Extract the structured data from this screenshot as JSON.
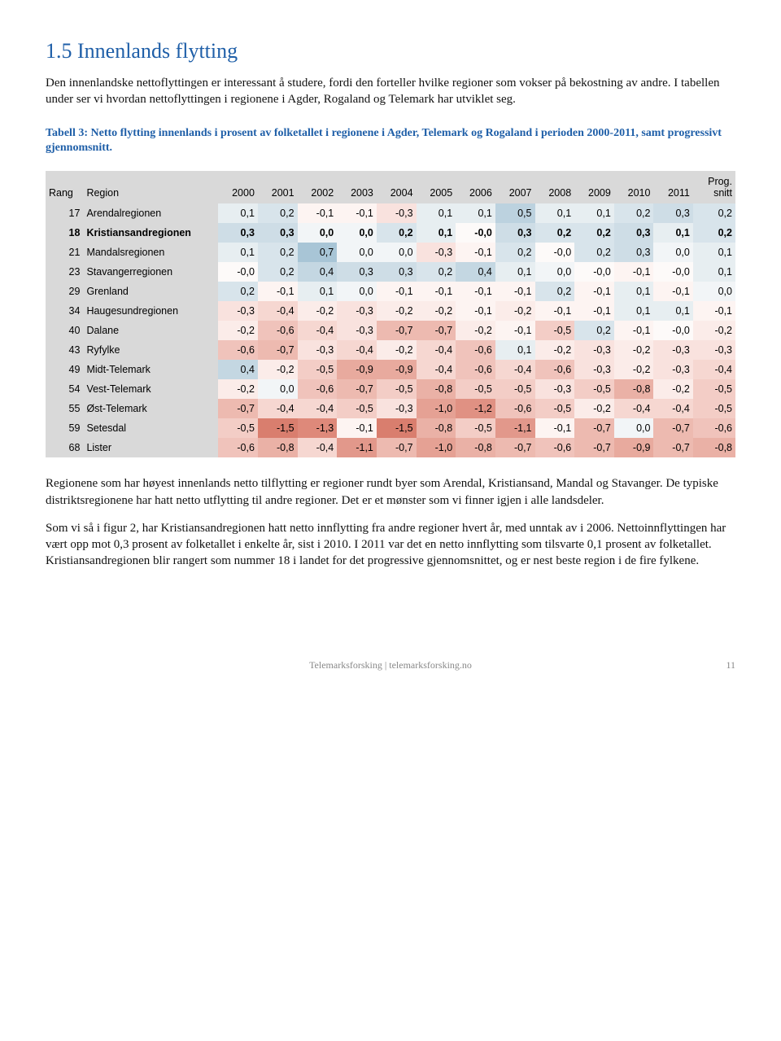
{
  "section_title": "1.5 Innenlands flytting",
  "intro_p1": "Den innenlandske nettoflyttingen er interessant å studere, fordi den forteller hvilke regioner som vokser på bekostning av andre. I tabellen under ser vi hvordan nettoflyttingen i regionene i Agder, Rogaland og Telemark har utviklet seg.",
  "caption": "Tabell 3: Netto flytting innenlands i prosent av folketallet i regionene i Agder, Telemark og Rogaland i perioden 2000-2011, samt progressivt gjennomsnitt.",
  "table": {
    "columns": [
      "Rang",
      "Region",
      "2000",
      "2001",
      "2002",
      "2003",
      "2004",
      "2005",
      "2006",
      "2007",
      "2008",
      "2009",
      "2010",
      "2011",
      "Prog. snitt"
    ],
    "col_widths": [
      "42px",
      "170px",
      "46px",
      "46px",
      "46px",
      "46px",
      "46px",
      "46px",
      "46px",
      "46px",
      "46px",
      "46px",
      "46px",
      "46px",
      "50px"
    ],
    "header_bg": "#d9d9d9",
    "rows": [
      {
        "rang": "17",
        "region": "Arendalregionen",
        "bold": false,
        "cells": [
          {
            "v": "0,1",
            "bg": "#e7eef1"
          },
          {
            "v": "0,2",
            "bg": "#d8e4eb"
          },
          {
            "v": "-0,1",
            "bg": "#fdf4f2"
          },
          {
            "v": "-0,1",
            "bg": "#fdf4f2"
          },
          {
            "v": "-0,3",
            "bg": "#f9e2de"
          },
          {
            "v": "0,1",
            "bg": "#e7eef1"
          },
          {
            "v": "0,1",
            "bg": "#e7eef1"
          },
          {
            "v": "0,5",
            "bg": "#bcd2df"
          },
          {
            "v": "0,1",
            "bg": "#e7eef1"
          },
          {
            "v": "0,1",
            "bg": "#e7eef1"
          },
          {
            "v": "0,2",
            "bg": "#d8e4eb"
          },
          {
            "v": "0,3",
            "bg": "#cedde6"
          },
          {
            "v": "0,2",
            "bg": "#d8e4eb"
          }
        ]
      },
      {
        "rang": "18",
        "region": "Kristiansandregionen",
        "bold": true,
        "cells": [
          {
            "v": "0,3",
            "bg": "#cedde6"
          },
          {
            "v": "0,3",
            "bg": "#cedde6"
          },
          {
            "v": "0,0",
            "bg": "#f2f5f7"
          },
          {
            "v": "0,0",
            "bg": "#f2f5f7"
          },
          {
            "v": "0,2",
            "bg": "#d8e4eb"
          },
          {
            "v": "0,1",
            "bg": "#e7eef1"
          },
          {
            "v": "-0,0",
            "bg": "#fdfaf9"
          },
          {
            "v": "0,3",
            "bg": "#cedde6"
          },
          {
            "v": "0,2",
            "bg": "#d8e4eb"
          },
          {
            "v": "0,2",
            "bg": "#d8e4eb"
          },
          {
            "v": "0,3",
            "bg": "#cedde6"
          },
          {
            "v": "0,1",
            "bg": "#e7eef1"
          },
          {
            "v": "0,2",
            "bg": "#d8e4eb"
          }
        ]
      },
      {
        "rang": "21",
        "region": "Mandalsregionen",
        "bold": false,
        "cells": [
          {
            "v": "0,1",
            "bg": "#e7eef1"
          },
          {
            "v": "0,2",
            "bg": "#d8e4eb"
          },
          {
            "v": "0,7",
            "bg": "#a8c5d6"
          },
          {
            "v": "0,0",
            "bg": "#f2f5f7"
          },
          {
            "v": "0,0",
            "bg": "#f2f5f7"
          },
          {
            "v": "-0,3",
            "bg": "#f9e2de"
          },
          {
            "v": "-0,1",
            "bg": "#fdf4f2"
          },
          {
            "v": "0,2",
            "bg": "#d8e4eb"
          },
          {
            "v": "-0,0",
            "bg": "#fdfaf9"
          },
          {
            "v": "0,2",
            "bg": "#d8e4eb"
          },
          {
            "v": "0,3",
            "bg": "#cedde6"
          },
          {
            "v": "0,0",
            "bg": "#f2f5f7"
          },
          {
            "v": "0,1",
            "bg": "#e7eef1"
          }
        ]
      },
      {
        "rang": "23",
        "region": "Stavangerregionen",
        "bold": false,
        "cells": [
          {
            "v": "-0,0",
            "bg": "#fdfaf9"
          },
          {
            "v": "0,2",
            "bg": "#d8e4eb"
          },
          {
            "v": "0,4",
            "bg": "#c4d7e2"
          },
          {
            "v": "0,3",
            "bg": "#cedde6"
          },
          {
            "v": "0,3",
            "bg": "#cedde6"
          },
          {
            "v": "0,2",
            "bg": "#d8e4eb"
          },
          {
            "v": "0,4",
            "bg": "#c4d7e2"
          },
          {
            "v": "0,1",
            "bg": "#e7eef1"
          },
          {
            "v": "0,0",
            "bg": "#f2f5f7"
          },
          {
            "v": "-0,0",
            "bg": "#fdfaf9"
          },
          {
            "v": "-0,1",
            "bg": "#fdf4f2"
          },
          {
            "v": "-0,0",
            "bg": "#fdfaf9"
          },
          {
            "v": "0,1",
            "bg": "#e7eef1"
          }
        ]
      },
      {
        "rang": "29",
        "region": "Grenland",
        "bold": false,
        "cells": [
          {
            "v": "0,2",
            "bg": "#d8e4eb"
          },
          {
            "v": "-0,1",
            "bg": "#fdf4f2"
          },
          {
            "v": "0,1",
            "bg": "#e7eef1"
          },
          {
            "v": "0,0",
            "bg": "#f2f5f7"
          },
          {
            "v": "-0,1",
            "bg": "#fdf4f2"
          },
          {
            "v": "-0,1",
            "bg": "#fdf4f2"
          },
          {
            "v": "-0,1",
            "bg": "#fdf4f2"
          },
          {
            "v": "-0,1",
            "bg": "#fdf4f2"
          },
          {
            "v": "0,2",
            "bg": "#d8e4eb"
          },
          {
            "v": "-0,1",
            "bg": "#fdf4f2"
          },
          {
            "v": "0,1",
            "bg": "#e7eef1"
          },
          {
            "v": "-0,1",
            "bg": "#fdf4f2"
          },
          {
            "v": "0,0",
            "bg": "#f2f5f7"
          }
        ]
      },
      {
        "rang": "34",
        "region": "Haugesundregionen",
        "bold": false,
        "cells": [
          {
            "v": "-0,3",
            "bg": "#f9e2de"
          },
          {
            "v": "-0,4",
            "bg": "#f6d7d1"
          },
          {
            "v": "-0,2",
            "bg": "#fbece9"
          },
          {
            "v": "-0,3",
            "bg": "#f9e2de"
          },
          {
            "v": "-0,2",
            "bg": "#fbece9"
          },
          {
            "v": "-0,2",
            "bg": "#fbece9"
          },
          {
            "v": "-0,1",
            "bg": "#fdf4f2"
          },
          {
            "v": "-0,2",
            "bg": "#fbece9"
          },
          {
            "v": "-0,1",
            "bg": "#fdf4f2"
          },
          {
            "v": "-0,1",
            "bg": "#fdf4f2"
          },
          {
            "v": "0,1",
            "bg": "#e7eef1"
          },
          {
            "v": "0,1",
            "bg": "#e7eef1"
          },
          {
            "v": "-0,1",
            "bg": "#fdf4f2"
          }
        ]
      },
      {
        "rang": "40",
        "region": "Dalane",
        "bold": false,
        "cells": [
          {
            "v": "-0,2",
            "bg": "#fbece9"
          },
          {
            "v": "-0,6",
            "bg": "#f0c3bb"
          },
          {
            "v": "-0,4",
            "bg": "#f6d7d1"
          },
          {
            "v": "-0,3",
            "bg": "#f9e2de"
          },
          {
            "v": "-0,7",
            "bg": "#edbab0"
          },
          {
            "v": "-0,7",
            "bg": "#edbab0"
          },
          {
            "v": "-0,2",
            "bg": "#fbece9"
          },
          {
            "v": "-0,1",
            "bg": "#fdf4f2"
          },
          {
            "v": "-0,5",
            "bg": "#f3cdc6"
          },
          {
            "v": "0,2",
            "bg": "#d8e4eb"
          },
          {
            "v": "-0,1",
            "bg": "#fdf4f2"
          },
          {
            "v": "-0,0",
            "bg": "#fdfaf9"
          },
          {
            "v": "-0,2",
            "bg": "#fbece9"
          }
        ]
      },
      {
        "rang": "43",
        "region": "Ryfylke",
        "bold": false,
        "cells": [
          {
            "v": "-0,6",
            "bg": "#f0c3bb"
          },
          {
            "v": "-0,7",
            "bg": "#edbab0"
          },
          {
            "v": "-0,3",
            "bg": "#f9e2de"
          },
          {
            "v": "-0,4",
            "bg": "#f6d7d1"
          },
          {
            "v": "-0,2",
            "bg": "#fbece9"
          },
          {
            "v": "-0,4",
            "bg": "#f6d7d1"
          },
          {
            "v": "-0,6",
            "bg": "#f0c3bb"
          },
          {
            "v": "0,1",
            "bg": "#e7eef1"
          },
          {
            "v": "-0,2",
            "bg": "#fbece9"
          },
          {
            "v": "-0,3",
            "bg": "#f9e2de"
          },
          {
            "v": "-0,2",
            "bg": "#fbece9"
          },
          {
            "v": "-0,3",
            "bg": "#f9e2de"
          },
          {
            "v": "-0,3",
            "bg": "#f9e2de"
          }
        ]
      },
      {
        "rang": "49",
        "region": "Midt-Telemark",
        "bold": false,
        "cells": [
          {
            "v": "0,4",
            "bg": "#c4d7e2"
          },
          {
            "v": "-0,2",
            "bg": "#fbece9"
          },
          {
            "v": "-0,5",
            "bg": "#f3cdc6"
          },
          {
            "v": "-0,9",
            "bg": "#e8aa9e"
          },
          {
            "v": "-0,9",
            "bg": "#e8aa9e"
          },
          {
            "v": "-0,4",
            "bg": "#f6d7d1"
          },
          {
            "v": "-0,6",
            "bg": "#f0c3bb"
          },
          {
            "v": "-0,4",
            "bg": "#f6d7d1"
          },
          {
            "v": "-0,6",
            "bg": "#f0c3bb"
          },
          {
            "v": "-0,3",
            "bg": "#f9e2de"
          },
          {
            "v": "-0,2",
            "bg": "#fbece9"
          },
          {
            "v": "-0,3",
            "bg": "#f9e2de"
          },
          {
            "v": "-0,4",
            "bg": "#f6d7d1"
          }
        ]
      },
      {
        "rang": "54",
        "region": "Vest-Telemark",
        "bold": false,
        "cells": [
          {
            "v": "-0,2",
            "bg": "#fbece9"
          },
          {
            "v": "0,0",
            "bg": "#f2f5f7"
          },
          {
            "v": "-0,6",
            "bg": "#f0c3bb"
          },
          {
            "v": "-0,7",
            "bg": "#edbab0"
          },
          {
            "v": "-0,5",
            "bg": "#f3cdc6"
          },
          {
            "v": "-0,8",
            "bg": "#eab1a6"
          },
          {
            "v": "-0,5",
            "bg": "#f3cdc6"
          },
          {
            "v": "-0,5",
            "bg": "#f3cdc6"
          },
          {
            "v": "-0,3",
            "bg": "#f9e2de"
          },
          {
            "v": "-0,5",
            "bg": "#f3cdc6"
          },
          {
            "v": "-0,8",
            "bg": "#eab1a6"
          },
          {
            "v": "-0,2",
            "bg": "#fbece9"
          },
          {
            "v": "-0,5",
            "bg": "#f3cdc6"
          }
        ]
      },
      {
        "rang": "55",
        "region": "Øst-Telemark",
        "bold": false,
        "cells": [
          {
            "v": "-0,7",
            "bg": "#edbab0"
          },
          {
            "v": "-0,4",
            "bg": "#f6d7d1"
          },
          {
            "v": "-0,4",
            "bg": "#f6d7d1"
          },
          {
            "v": "-0,5",
            "bg": "#f3cdc6"
          },
          {
            "v": "-0,3",
            "bg": "#f9e2de"
          },
          {
            "v": "-1,0",
            "bg": "#e5a194"
          },
          {
            "v": "-1,2",
            "bg": "#e09183"
          },
          {
            "v": "-0,6",
            "bg": "#f0c3bb"
          },
          {
            "v": "-0,5",
            "bg": "#f3cdc6"
          },
          {
            "v": "-0,2",
            "bg": "#fbece9"
          },
          {
            "v": "-0,4",
            "bg": "#f6d7d1"
          },
          {
            "v": "-0,4",
            "bg": "#f6d7d1"
          },
          {
            "v": "-0,5",
            "bg": "#f3cdc6"
          }
        ]
      },
      {
        "rang": "59",
        "region": "Setesdal",
        "bold": false,
        "cells": [
          {
            "v": "-0,5",
            "bg": "#f3cdc6"
          },
          {
            "v": "-1,5",
            "bg": "#d97e6e"
          },
          {
            "v": "-1,3",
            "bg": "#de897a"
          },
          {
            "v": "-0,1",
            "bg": "#fdf4f2"
          },
          {
            "v": "-1,5",
            "bg": "#d97e6e"
          },
          {
            "v": "-0,8",
            "bg": "#eab1a6"
          },
          {
            "v": "-0,5",
            "bg": "#f3cdc6"
          },
          {
            "v": "-1,1",
            "bg": "#e2988b"
          },
          {
            "v": "-0,1",
            "bg": "#fdf4f2"
          },
          {
            "v": "-0,7",
            "bg": "#edbab0"
          },
          {
            "v": "0,0",
            "bg": "#f2f5f7"
          },
          {
            "v": "-0,7",
            "bg": "#edbab0"
          },
          {
            "v": "-0,6",
            "bg": "#f0c3bb"
          }
        ]
      },
      {
        "rang": "68",
        "region": "Lister",
        "bold": false,
        "cells": [
          {
            "v": "-0,6",
            "bg": "#f0c3bb"
          },
          {
            "v": "-0,8",
            "bg": "#eab1a6"
          },
          {
            "v": "-0,4",
            "bg": "#f6d7d1"
          },
          {
            "v": "-1,1",
            "bg": "#e2988b"
          },
          {
            "v": "-0,7",
            "bg": "#edbab0"
          },
          {
            "v": "-1,0",
            "bg": "#e5a194"
          },
          {
            "v": "-0,8",
            "bg": "#eab1a6"
          },
          {
            "v": "-0,7",
            "bg": "#edbab0"
          },
          {
            "v": "-0,6",
            "bg": "#f0c3bb"
          },
          {
            "v": "-0,7",
            "bg": "#edbab0"
          },
          {
            "v": "-0,9",
            "bg": "#e8aa9e"
          },
          {
            "v": "-0,7",
            "bg": "#edbab0"
          },
          {
            "v": "-0,8",
            "bg": "#eab1a6"
          }
        ]
      }
    ]
  },
  "outro_p1": "Regionene som har høyest innenlands netto tilflytting er regioner rundt byer som Arendal, Kristiansand, Mandal og Stavanger. De typiske distriktsregionene har hatt netto utflytting til andre regioner. Det er et mønster som vi finner igjen i alle landsdeler.",
  "outro_p2": "Som vi så i figur 2, har Kristiansandregionen hatt netto innflytting fra andre regioner hvert år, med unntak av i 2006. Nettoinnflyttingen har vært opp mot 0,3 prosent av folketallet i enkelte år, sist i 2010. I 2011 var det en netto innflytting som tilsvarte 0,1 prosent av folketallet. Kristiansandregionen blir rangert som nummer 18 i landet for det progressive gjennomsnittet, og er nest beste region i de fire fylkene.",
  "footer_text": "Telemarksforsking  |  telemarksforsking.no",
  "page_number": "11"
}
